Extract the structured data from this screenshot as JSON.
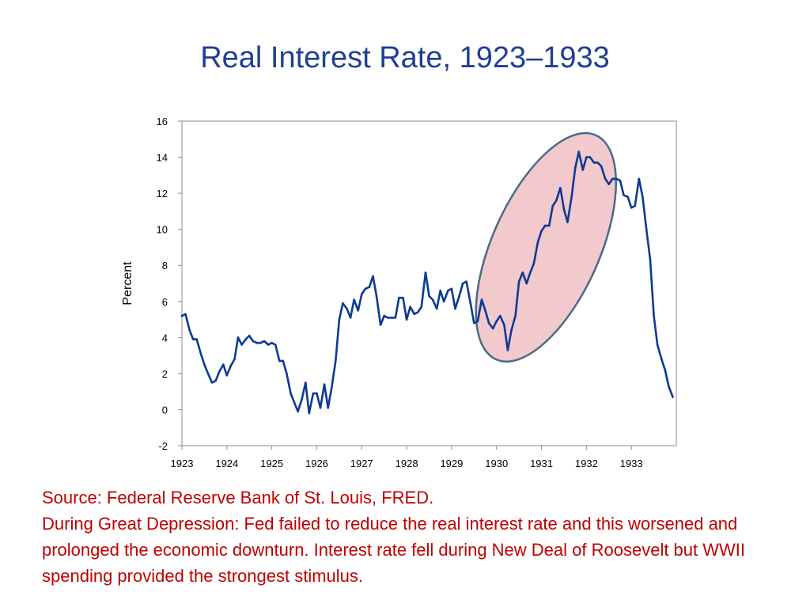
{
  "title": "Real Interest Rate, 1923–1933",
  "notes": {
    "source": "Source:  Federal Reserve Bank of St. Louis, FRED.",
    "commentary": "During Great Depression: Fed failed to reduce the real interest rate and this worsened and prolonged the economic downturn. Interest rate fell during New Deal of Roosevelt but WWII spending provided the strongest stimulus."
  },
  "colors": {
    "title": "#1f3f94",
    "line": "#0d3a94",
    "highlight_fill": "#f2c9cc",
    "highlight_stroke": "#4a6a8a",
    "notes": "#c00000"
  },
  "chart_data": {
    "type": "line",
    "title": "Real Interest Rate, 1923–1933",
    "xlabel": "",
    "ylabel": "Percent",
    "xlim": [
      1923,
      1934
    ],
    "ylim": [
      -2,
      16
    ],
    "x_ticks": [
      1923,
      1924,
      1925,
      1926,
      1927,
      1928,
      1929,
      1930,
      1931,
      1932,
      1933
    ],
    "y_ticks": [
      -2,
      0,
      2,
      4,
      6,
      8,
      10,
      12,
      14,
      16
    ],
    "grid": false,
    "legend": "none",
    "highlight": {
      "type": "ellipse",
      "x_range": [
        1929.6,
        1932.6
      ],
      "y_range": [
        2.6,
        15.4
      ]
    },
    "series": [
      {
        "x": [
          1923.0,
          1923.08,
          1923.17,
          1923.25,
          1923.33,
          1923.42,
          1923.5,
          1923.58,
          1923.67,
          1923.75,
          1923.83,
          1923.92,
          1924.0,
          1924.08,
          1924.17,
          1924.25,
          1924.33,
          1924.42,
          1924.5,
          1924.58,
          1924.67,
          1924.75,
          1924.83,
          1924.92,
          1925.0,
          1925.08,
          1925.17,
          1925.25,
          1925.33,
          1925.42,
          1925.5,
          1925.58,
          1925.67,
          1925.75,
          1925.83,
          1925.92,
          1926.0,
          1926.08,
          1926.17,
          1926.25,
          1926.33,
          1926.42,
          1926.5,
          1926.58,
          1926.67,
          1926.75,
          1926.83,
          1926.92,
          1927.0,
          1927.08,
          1927.17,
          1927.25,
          1927.33,
          1927.42,
          1927.5,
          1927.58,
          1927.67,
          1927.75,
          1927.83,
          1927.92,
          1928.0,
          1928.08,
          1928.17,
          1928.25,
          1928.33,
          1928.42,
          1928.5,
          1928.58,
          1928.67,
          1928.75,
          1928.83,
          1928.92,
          1929.0,
          1929.08,
          1929.17,
          1929.25,
          1929.33,
          1929.42,
          1929.5,
          1929.58,
          1929.67,
          1929.75,
          1929.83,
          1929.92,
          1930.0,
          1930.08,
          1930.17,
          1930.25,
          1930.33,
          1930.42,
          1930.5,
          1930.58,
          1930.67,
          1930.75,
          1930.83,
          1930.92,
          1931.0,
          1931.08,
          1931.17,
          1931.25,
          1931.33,
          1931.42,
          1931.5,
          1931.58,
          1931.67,
          1931.75,
          1931.83,
          1931.92,
          1932.0,
          1932.08,
          1932.17,
          1932.25,
          1932.33,
          1932.42,
          1932.5,
          1932.58,
          1932.67,
          1932.75,
          1932.83,
          1932.92,
          1933.0,
          1933.08,
          1933.17,
          1933.25,
          1933.33,
          1933.42,
          1933.5,
          1933.58,
          1933.67,
          1933.75,
          1933.83,
          1933.92
        ],
        "values": [
          5.2,
          5.3,
          4.4,
          3.9,
          3.9,
          3.1,
          2.5,
          2.0,
          1.5,
          1.6,
          2.1,
          2.5,
          1.9,
          2.4,
          2.8,
          4.0,
          3.6,
          3.9,
          4.1,
          3.8,
          3.7,
          3.7,
          3.8,
          3.6,
          3.7,
          3.6,
          2.7,
          2.7,
          2.0,
          0.9,
          0.4,
          -0.1,
          0.6,
          1.5,
          -0.2,
          0.9,
          0.9,
          0.1,
          1.4,
          0.1,
          1.2,
          2.7,
          5.0,
          5.9,
          5.6,
          5.1,
          6.1,
          5.5,
          6.4,
          6.7,
          6.8,
          7.4,
          6.3,
          4.7,
          5.2,
          5.1,
          5.1,
          5.1,
          6.2,
          6.2,
          5.0,
          5.7,
          5.3,
          5.4,
          5.7,
          7.6,
          6.3,
          6.1,
          5.6,
          6.6,
          6.0,
          6.6,
          6.7,
          5.6,
          6.3,
          7.0,
          7.1,
          5.9,
          4.8,
          4.9,
          6.1,
          5.5,
          4.8,
          4.5,
          4.9,
          5.2,
          4.7,
          3.3,
          4.4,
          5.2,
          7.1,
          7.6,
          7.0,
          7.6,
          8.1,
          9.3,
          9.9,
          10.2,
          10.2,
          11.3,
          11.6,
          12.3,
          11.1,
          10.4,
          11.8,
          13.4,
          14.3,
          13.3,
          14.0,
          14.0,
          13.7,
          13.7,
          13.5,
          12.8,
          12.5,
          12.8,
          12.8,
          12.7,
          11.9,
          11.8,
          11.2,
          11.3,
          12.8,
          11.8,
          10.1,
          8.3,
          5.2,
          3.6,
          2.8,
          2.2,
          1.3,
          0.7
        ]
      }
    ]
  }
}
